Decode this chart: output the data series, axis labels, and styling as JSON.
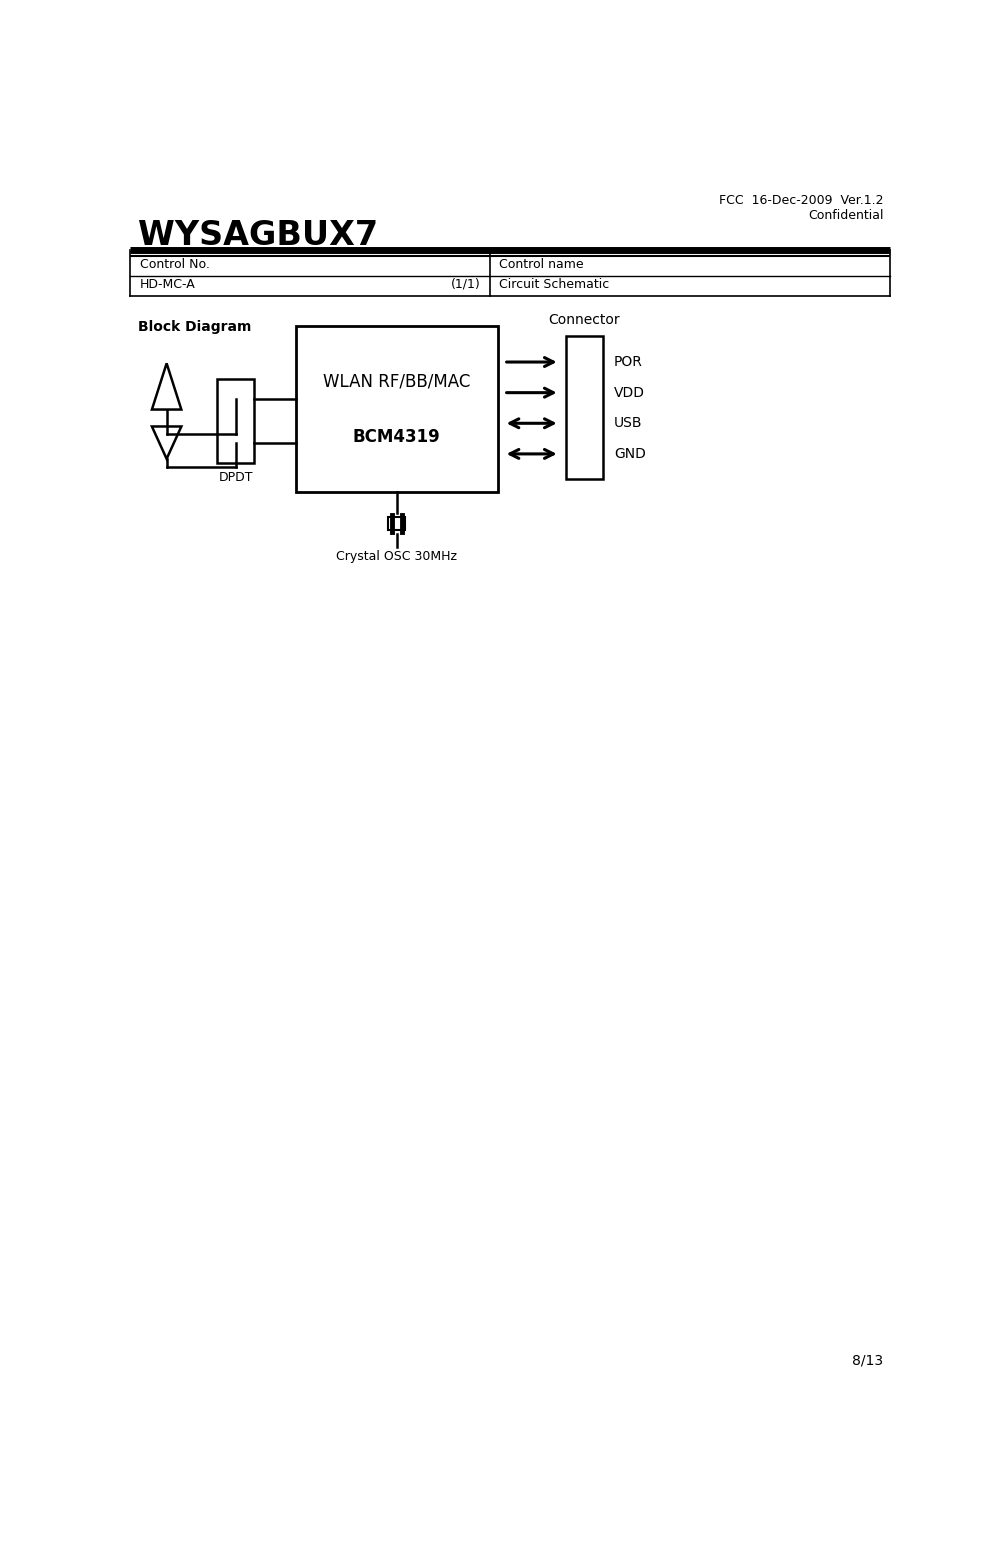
{
  "fcc_text": "FCC  16-Dec-2009  Ver.1.2",
  "confidential_text": "Confidential",
  "title_text": "WYSAGBUX7",
  "table_col1_row1": "Control No.",
  "table_col1_row2": "HD-MC-A",
  "table_col1_row2_right": "(1/1)",
  "table_col2_row1": "Control name",
  "table_col2_row2": "Circuit Schematic",
  "block_diagram_label": "Block Diagram",
  "chip_label1": "WLAN RF/BB/MAC",
  "chip_label2": "BCM4319",
  "dpdt_label": "DPDT",
  "connector_label": "Connector",
  "crystal_label": "Crystal OSC 30MHz",
  "pin_labels": [
    "POR",
    "VDD",
    "USB",
    "GND"
  ],
  "pin_arrow_types": [
    "left",
    "left",
    "both",
    "both"
  ],
  "page_number": "8/13",
  "bg_color": "#ffffff",
  "fg_color": "#000000"
}
